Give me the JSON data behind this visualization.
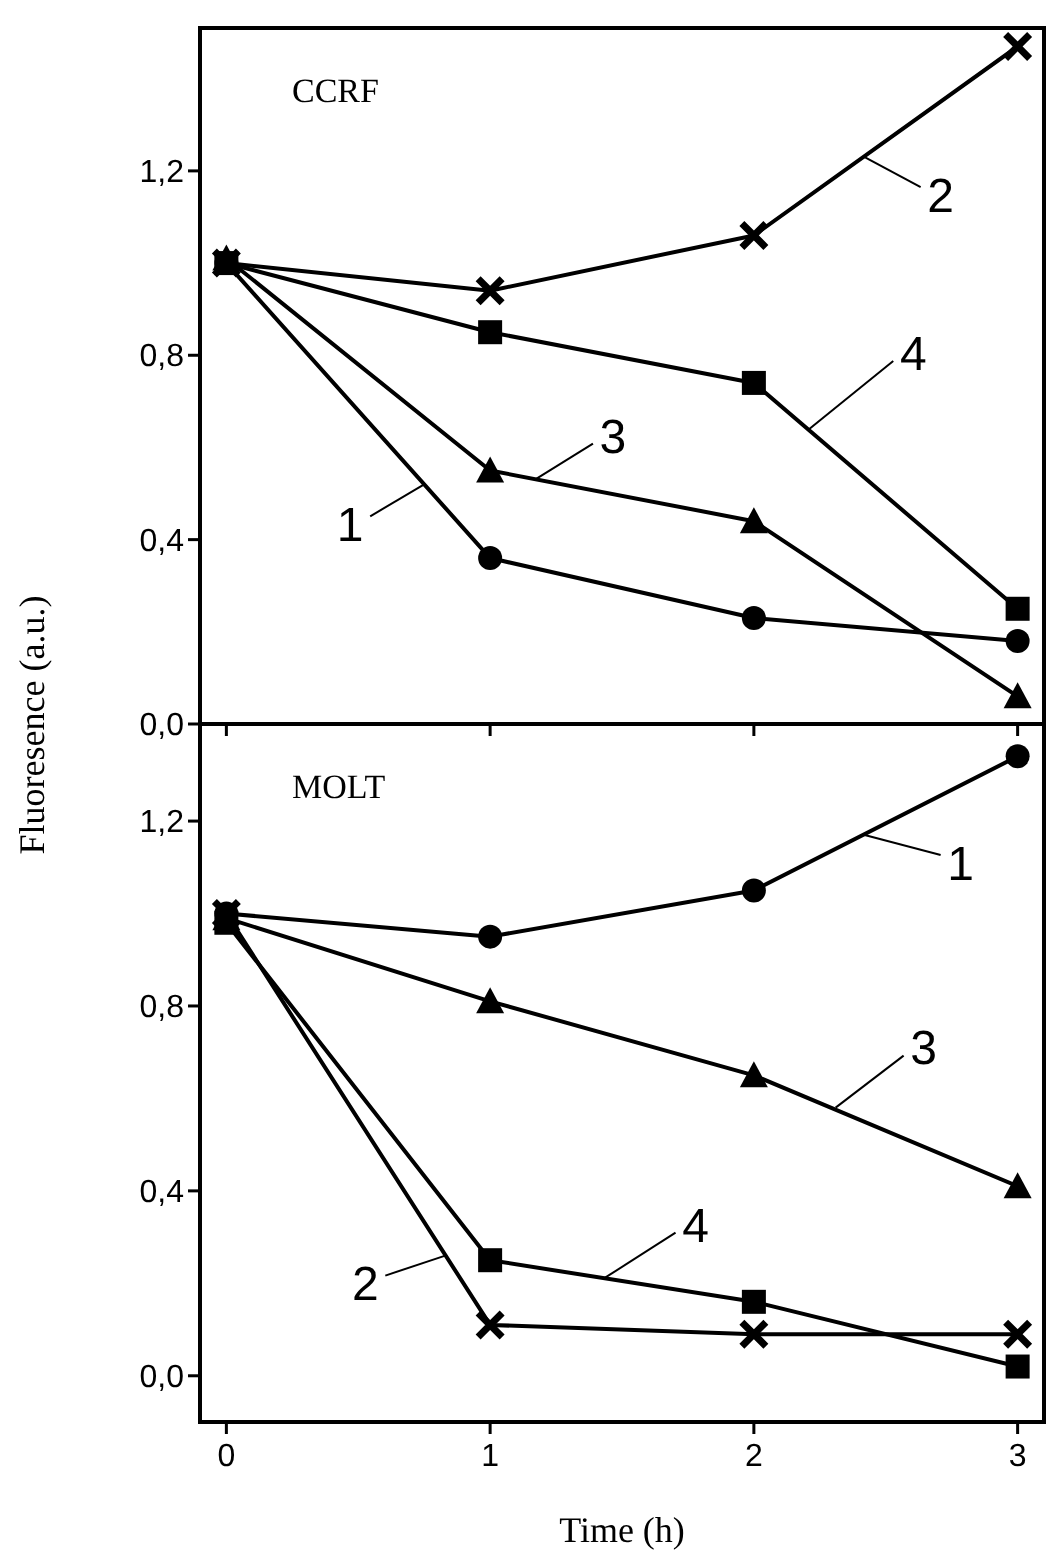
{
  "chart_data": [
    {
      "type": "line",
      "title": "CCRF",
      "ylabel": "Fluoresence (a.u.)",
      "x": [
        0,
        1,
        2,
        3
      ],
      "xlim": [
        -0.1,
        3.1
      ],
      "xticks": [
        0,
        1,
        2,
        3
      ],
      "ylim": [
        0,
        1.51
      ],
      "yticks": [
        {
          "value": 0,
          "label": "0,0"
        },
        {
          "value": 0.4,
          "label": "0,4"
        },
        {
          "value": 0.8,
          "label": "0,8"
        },
        {
          "value": 1.2,
          "label": "1,2"
        }
      ],
      "tick_labels": "y",
      "grid": false,
      "series": [
        {
          "color": "#000000",
          "marker": "circle",
          "values": [
            1.0,
            0.36,
            0.23,
            0.18
          ]
        },
        {
          "color": "#000000",
          "marker": "cross",
          "values": [
            1.0,
            0.94,
            1.06,
            1.47
          ]
        },
        {
          "color": "#000000",
          "marker": "triangle",
          "values": [
            1.01,
            0.55,
            0.44,
            0.06
          ]
        },
        {
          "color": "#000000",
          "marker": "square",
          "values": [
            1.0,
            0.85,
            0.74,
            0.25
          ]
        }
      ],
      "annotations": [
        {
          "text": "2",
          "x": 2.42,
          "y": 1.23
        },
        {
          "text": "4",
          "x": 2.21,
          "y": 0.64
        },
        {
          "text": "3",
          "x": 1.17,
          "y": 0.53
        },
        {
          "text": "1",
          "x": 0.75,
          "y": 0.52
        }
      ]
    },
    {
      "type": "line",
      "title": "MOLT",
      "xlabel": "Time (h)",
      "x": [
        0,
        1,
        2,
        3
      ],
      "xlim": [
        -0.1,
        3.1
      ],
      "xticks": [
        0,
        1,
        2,
        3
      ],
      "ylim": [
        -0.1,
        1.41
      ],
      "yticks": [
        {
          "value": 0,
          "label": "0,0"
        },
        {
          "value": 0.4,
          "label": "0,4"
        },
        {
          "value": 0.8,
          "label": "0,8"
        },
        {
          "value": 1.2,
          "label": "1,2"
        }
      ],
      "grid": false,
      "series": [
        {
          "color": "#000000",
          "marker": "circle",
          "values": [
            1.0,
            0.95,
            1.05,
            1.34
          ]
        },
        {
          "color": "#000000",
          "marker": "cross",
          "values": [
            1.0,
            0.11,
            0.09,
            0.09
          ]
        },
        {
          "color": "#000000",
          "marker": "triangle",
          "values": [
            0.99,
            0.81,
            0.65,
            0.41
          ]
        },
        {
          "color": "#000000",
          "marker": "square",
          "values": [
            0.98,
            0.25,
            0.16,
            0.02
          ]
        }
      ],
      "annotations": [
        {
          "text": "1",
          "x": 2.42,
          "y": 1.17
        },
        {
          "text": "3",
          "x": 2.31,
          "y": 0.58
        },
        {
          "text": "4",
          "x": 1.43,
          "y": 0.21
        },
        {
          "text": "2",
          "x": 0.83,
          "y": 0.26
        }
      ]
    }
  ]
}
